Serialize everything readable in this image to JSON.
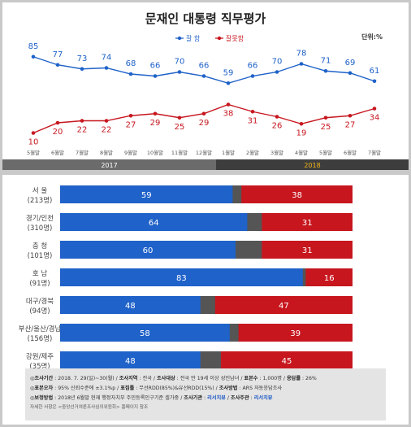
{
  "chart_data": [
    {
      "type": "line",
      "title": "문재인 대통령 직무평가",
      "unit": "단위:%",
      "x": [
        "5월말",
        "6월말",
        "7월말",
        "8월말",
        "9월말",
        "10월말",
        "11월말",
        "12월말",
        "1월말",
        "2월말",
        "3월말",
        "4월말",
        "5월말",
        "6월말",
        "7월말"
      ],
      "years": [
        {
          "label": "2017",
          "from": 0,
          "to": 7
        },
        {
          "label": "2018",
          "from": 8,
          "to": 14
        }
      ],
      "series": [
        {
          "name": "잘 함",
          "color": "#1f62c9",
          "values": [
            85,
            77,
            73,
            74,
            68,
            66,
            70,
            66,
            59,
            66,
            70,
            78,
            71,
            69,
            61
          ]
        },
        {
          "name": "잘못함",
          "color": "#c7161e",
          "values": [
            10,
            20,
            22,
            22,
            27,
            29,
            25,
            29,
            38,
            31,
            26,
            19,
            25,
            27,
            34
          ]
        }
      ],
      "ylim": [
        0,
        100
      ]
    },
    {
      "type": "bar",
      "stacked": true,
      "orientation": "horizontal",
      "categories": [
        {
          "name": "서 울",
          "n": "(213명)"
        },
        {
          "name": "경기/인천",
          "n": "(310명)"
        },
        {
          "name": "충 청",
          "n": "(101명)"
        },
        {
          "name": "호 남",
          "n": "(91명)"
        },
        {
          "name": "대구/경북",
          "n": "(94명)"
        },
        {
          "name": "부산/울산/경남",
          "n": "(156명)"
        },
        {
          "name": "강원/제주",
          "n": "(35명)"
        }
      ],
      "series": [
        {
          "name": "잘 함",
          "color": "#1f62c9",
          "values": [
            59,
            64,
            60,
            83,
            48,
            58,
            48
          ]
        },
        {
          "name": "잘못함",
          "color": "#c7161e",
          "values": [
            38,
            31,
            31,
            16,
            47,
            39,
            45
          ]
        }
      ],
      "xlim": [
        0,
        100
      ]
    }
  ],
  "footer": {
    "line1": [
      {
        "k": "◎조사기간",
        "v": " : 2018. 7. 29(일)~30(월) / "
      },
      {
        "k": "조사지역",
        "v": " : 전국 / "
      },
      {
        "k": "조사대상",
        "v": " : 전국 만 19세 이상 성인남녀 / "
      },
      {
        "k": "표본수",
        "v": " : 1,000명 / "
      },
      {
        "k": "응답률",
        "v": " : 26%"
      }
    ],
    "line2": [
      {
        "k": "◎표본오차",
        "v": " : 95% 신뢰수준에 ±3.1%p / "
      },
      {
        "k": "표집틀",
        "v": " : 무선RDD(85%)&유선RDD(15%) / "
      },
      {
        "k": "조사방법",
        "v": " : ARS 자동응답조사"
      }
    ],
    "line3": [
      {
        "k": "◎보정방법",
        "v": " : 2018년 6월말 현재 행정자치부 주민등록인구기준 셀가중 / "
      },
      {
        "k": "조사기관",
        "v": " : "
      },
      {
        "k": "",
        "v": "리서치뷰",
        "b": true
      },
      {
        "k": "",
        "v": " / "
      },
      {
        "k": "조사주관",
        "v": " : "
      },
      {
        "k": "",
        "v": "리서치뷰",
        "b": true
      }
    ],
    "line4": "자세한 사항은 <중앙선거여론조사심의위원회> 홈페이지 참조"
  }
}
